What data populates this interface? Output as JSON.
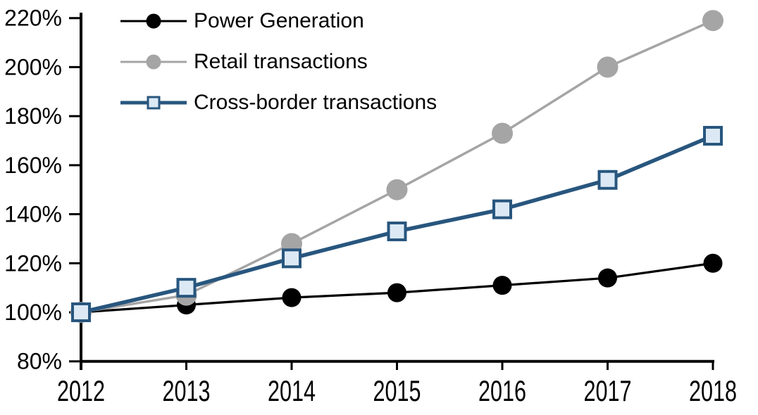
{
  "chart_data": {
    "type": "line",
    "grid": false,
    "legend_position": "top-left-inside",
    "categories": [
      "2012",
      "2013",
      "2014",
      "2015",
      "2016",
      "2017",
      "2018"
    ],
    "y_axis": {
      "min": 80,
      "max": 220,
      "step": 20,
      "unit": "%",
      "ticks": [
        {
          "value": 80,
          "label": "80%"
        },
        {
          "value": 100,
          "label": "100%"
        },
        {
          "value": 120,
          "label": "120%"
        },
        {
          "value": 140,
          "label": "140%"
        },
        {
          "value": 160,
          "label": "160%"
        },
        {
          "value": 180,
          "label": "180%"
        },
        {
          "value": 200,
          "label": "200%"
        },
        {
          "value": 220,
          "label": "220%"
        }
      ]
    },
    "series": [
      {
        "name": "Power Generation",
        "color": "#000000",
        "marker": "circle",
        "marker_fill": "#000000",
        "marker_radius": 13.5,
        "line_width": 3.25,
        "values": [
          100,
          103,
          106,
          108,
          111,
          114,
          120
        ]
      },
      {
        "name": "Retail transactions",
        "color": "#A5A5A5",
        "marker": "circle",
        "marker_fill": "#A5A5A5",
        "marker_radius": 15,
        "line_width": 3.5,
        "values": [
          100,
          107,
          128,
          150,
          173,
          200,
          219
        ]
      },
      {
        "name": "Cross-border transactions",
        "color": "#28567E",
        "marker": "square",
        "marker_fill": "#DCE9F5",
        "marker_size": 24,
        "marker_stroke_width": 4,
        "line_width": 5.5,
        "values": [
          100,
          110,
          122,
          133,
          142,
          154,
          172
        ]
      }
    ]
  }
}
